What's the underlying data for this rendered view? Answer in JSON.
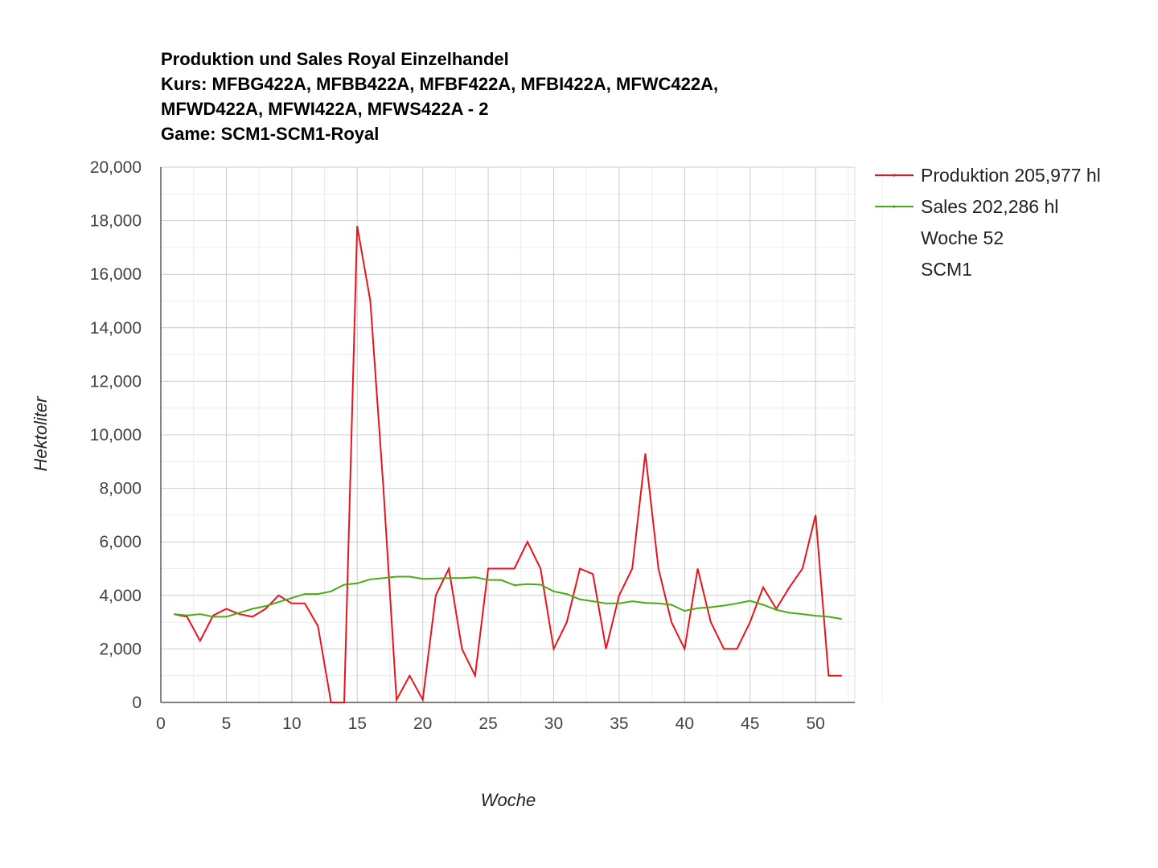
{
  "chart_data": {
    "type": "line",
    "title_lines": [
      "Produktion und Sales Royal Einzelhandel",
      "Kurs: MFBG422A, MFBB422A, MFBF422A, MFBI422A, MFWC422A,",
      "MFWD422A, MFWI422A, MFWS422A - 2",
      "Game: SCM1-SCM1-Royal"
    ],
    "xlabel": "Woche",
    "ylabel": "Hektoliter",
    "xlim": [
      0,
      53
    ],
    "ylim": [
      0,
      20000
    ],
    "x_ticks": [
      0,
      5,
      10,
      15,
      20,
      25,
      30,
      35,
      40,
      45,
      50
    ],
    "x_tick_labels": [
      "0",
      "5",
      "10",
      "15",
      "20",
      "25",
      "30",
      "35",
      "40",
      "45",
      "50"
    ],
    "y_ticks": [
      0,
      2000,
      4000,
      6000,
      8000,
      10000,
      12000,
      14000,
      16000,
      18000,
      20000
    ],
    "y_tick_labels": [
      "0",
      "2,000",
      "4,000",
      "6,000",
      "8,000",
      "10,000",
      "12,000",
      "14,000",
      "16,000",
      "18,000",
      "20,000"
    ],
    "grid": true,
    "legend_position": "right",
    "x": [
      1,
      2,
      3,
      4,
      5,
      6,
      7,
      8,
      9,
      10,
      11,
      12,
      13,
      14,
      15,
      16,
      17,
      18,
      19,
      20,
      21,
      22,
      23,
      24,
      25,
      26,
      27,
      28,
      29,
      30,
      31,
      32,
      33,
      34,
      35,
      36,
      37,
      38,
      39,
      40,
      41,
      42,
      43,
      44,
      45,
      46,
      47,
      48,
      49,
      50,
      51,
      52
    ],
    "series": [
      {
        "name": "Produktion 205,977 hl",
        "color": "#e8141c",
        "values": [
          3300,
          3200,
          2300,
          3250,
          3500,
          3300,
          3200,
          3500,
          4000,
          3700,
          3700,
          2850,
          0,
          0,
          17800,
          15000,
          8000,
          100,
          1000,
          100,
          4000,
          5000,
          2000,
          1000,
          5000,
          5000,
          5000,
          6000,
          5000,
          2000,
          3000,
          5000,
          4800,
          2000,
          4000,
          5000,
          9300,
          5000,
          3000,
          2000,
          5000,
          3000,
          2000,
          2000,
          3000,
          4300,
          3500,
          4300,
          5000,
          7000,
          1000,
          1000
        ]
      },
      {
        "name": "Sales 202,286 hl",
        "color": "#4aaa14",
        "values": [
          3300,
          3250,
          3300,
          3200,
          3200,
          3350,
          3500,
          3600,
          3750,
          3900,
          4050,
          4050,
          4150,
          4400,
          4450,
          4600,
          4650,
          4700,
          4700,
          4620,
          4630,
          4650,
          4650,
          4680,
          4580,
          4570,
          4380,
          4420,
          4400,
          4150,
          4050,
          3850,
          3780,
          3700,
          3700,
          3780,
          3720,
          3700,
          3650,
          3420,
          3520,
          3560,
          3620,
          3700,
          3800,
          3650,
          3460,
          3350,
          3300,
          3240,
          3200,
          3120
        ]
      }
    ],
    "legend_extra": [
      "Woche 52",
      "SCM1"
    ]
  }
}
